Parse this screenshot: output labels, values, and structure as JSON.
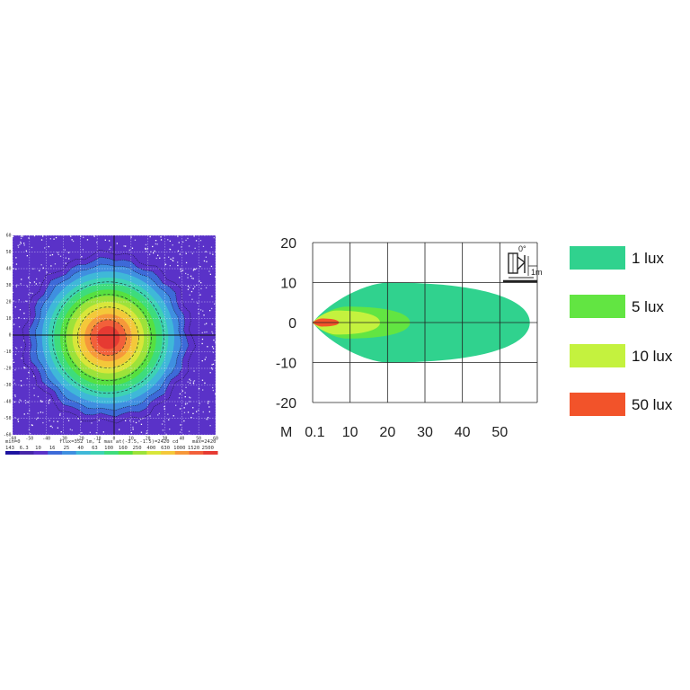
{
  "chart_data": [
    {
      "type": "heatmap",
      "title": "",
      "xlabel": "",
      "ylabel": "",
      "xlim": [
        -60,
        60
      ],
      "ylim": [
        -60,
        60
      ],
      "x_ticks": [
        -60,
        -50,
        -40,
        -30,
        -20,
        -10,
        0,
        10,
        20,
        30,
        40,
        50,
        60
      ],
      "y_ticks": [
        -60,
        -50,
        -40,
        -30,
        -20,
        -10,
        0,
        10,
        20,
        30,
        40,
        50,
        60
      ],
      "grid": true,
      "peak_center": [
        -3.5,
        -1.5
      ],
      "min_label": "min=0",
      "info_text": "flux=352 lm, I max at(-3.5,-1.5)=2420 cd",
      "max_label": "max=2420",
      "scale_values": [
        "143",
        "6.3",
        "10",
        "16",
        "25",
        "40",
        "63",
        "100",
        "160",
        "250",
        "400",
        "630",
        "1000",
        "1520",
        "2500"
      ],
      "colors": [
        "#1e14a0",
        "#4626a8",
        "#5a32c8",
        "#3d6ad8",
        "#3f8fe0",
        "#3fb8d8",
        "#3dd2b4",
        "#3edc7c",
        "#56e040",
        "#9ce23a",
        "#d8e63a",
        "#f4c83a",
        "#f6983a",
        "#f2603a",
        "#e63a32"
      ]
    },
    {
      "type": "area",
      "title": "",
      "xlabel": "M",
      "ylabel": "",
      "xlim": [
        0,
        60
      ],
      "ylim": [
        -20,
        20
      ],
      "x_tick_labels": [
        "0.1",
        "10",
        "20",
        "30",
        "40",
        "50"
      ],
      "x_tick_values": [
        0.1,
        10,
        20,
        30,
        40,
        50
      ],
      "y_ticks": [
        20,
        10,
        0,
        -10,
        -20
      ],
      "grid": true,
      "legend_placement": "right",
      "series": [
        {
          "name": "1 lux",
          "reach": 58,
          "half_width": 10,
          "color": "#30d28e"
        },
        {
          "name": "5 lux",
          "reach": 26,
          "half_width": 4,
          "color": "#62e542"
        },
        {
          "name": "10 lux",
          "reach": 18,
          "half_width": 3,
          "color": "#c4f23e"
        },
        {
          "name": "50 lux",
          "reach": 7,
          "half_width": 1,
          "color": "#f2532a"
        }
      ],
      "inset": {
        "angle_label": "0°",
        "distance_label": "1m"
      }
    }
  ]
}
